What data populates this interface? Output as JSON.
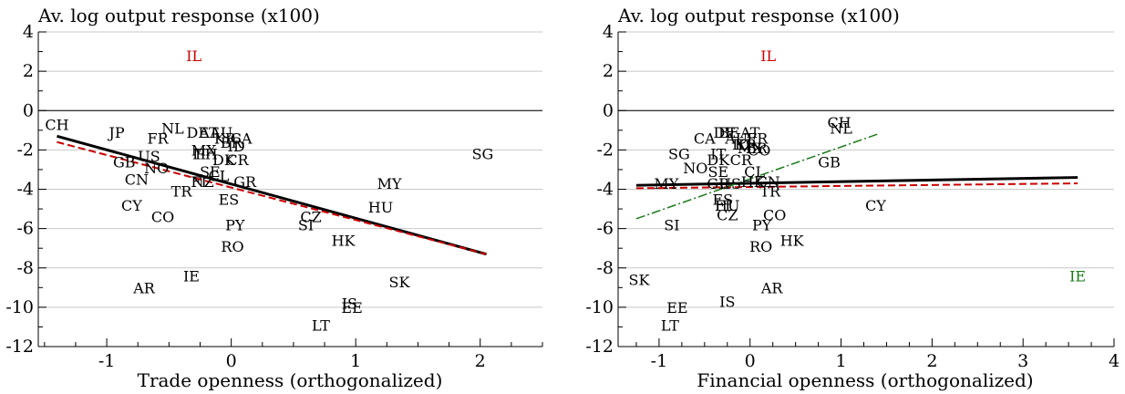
{
  "chart_data": [
    {
      "type": "scatter",
      "title": "Av. log output response (x100)",
      "xlabel": "Trade openness (orthogonalized)",
      "ylabel": "",
      "xlim": [
        -1.55,
        2.5
      ],
      "ylim": [
        -12,
        4
      ],
      "xticks": [
        -1,
        0,
        1,
        2
      ],
      "yticks": [
        -12,
        -10,
        -8,
        -6,
        -4,
        -2,
        0,
        2,
        4
      ],
      "grid": true,
      "points": [
        {
          "label": "CH",
          "x": -1.4,
          "y": -0.7,
          "color": "#000000"
        },
        {
          "label": "JP",
          "x": -0.92,
          "y": -1.1,
          "color": "#000000"
        },
        {
          "label": "NL",
          "x": -0.47,
          "y": -0.9,
          "color": "#000000"
        },
        {
          "label": "FR",
          "x": -0.59,
          "y": -1.4,
          "color": "#000000"
        },
        {
          "label": "DE",
          "x": -0.27,
          "y": -1.1,
          "color": "#000000"
        },
        {
          "label": "AT",
          "x": -0.18,
          "y": -1.1,
          "color": "#000000"
        },
        {
          "label": "AU",
          "x": -0.08,
          "y": -1.1,
          "color": "#000000"
        },
        {
          "label": "CA",
          "x": 0.08,
          "y": -1.4,
          "color": "#000000"
        },
        {
          "label": "KR",
          "x": -0.05,
          "y": -1.4,
          "color": "#000000"
        },
        {
          "label": "ID",
          "x": 0.04,
          "y": -1.8,
          "color": "#000000"
        },
        {
          "label": "BR",
          "x": 0.0,
          "y": -1.6,
          "color": "#000000"
        },
        {
          "label": "MX",
          "x": -0.22,
          "y": -2.0,
          "color": "#000000"
        },
        {
          "label": "PH",
          "x": -0.2,
          "y": -2.2,
          "color": "#000000"
        },
        {
          "label": "IT",
          "x": -0.25,
          "y": -2.2,
          "color": "#000000"
        },
        {
          "label": "CR",
          "x": 0.05,
          "y": -2.5,
          "color": "#000000"
        },
        {
          "label": "DK",
          "x": -0.06,
          "y": -2.5,
          "color": "#000000"
        },
        {
          "label": "US",
          "x": -0.66,
          "y": -2.3,
          "color": "#000000"
        },
        {
          "label": "GB",
          "x": -0.86,
          "y": -2.6,
          "color": "#000000"
        },
        {
          "label": "NO",
          "x": -0.6,
          "y": -2.9,
          "color": "#000000"
        },
        {
          "label": "SE",
          "x": -0.17,
          "y": -3.1,
          "color": "#000000"
        },
        {
          "label": "CL",
          "x": -0.1,
          "y": -3.3,
          "color": "#000000"
        },
        {
          "label": "CN",
          "x": -0.76,
          "y": -3.5,
          "color": "#000000"
        },
        {
          "label": "GR",
          "x": 0.11,
          "y": -3.6,
          "color": "#000000"
        },
        {
          "label": "NZ",
          "x": -0.23,
          "y": -3.6,
          "color": "#000000"
        },
        {
          "label": "FI",
          "x": -0.26,
          "y": -3.6,
          "color": "#000000"
        },
        {
          "label": "TR",
          "x": -0.4,
          "y": -4.1,
          "color": "#000000"
        },
        {
          "label": "CY",
          "x": -0.8,
          "y": -4.8,
          "color": "#000000"
        },
        {
          "label": "ES",
          "x": -0.02,
          "y": -4.5,
          "color": "#000000"
        },
        {
          "label": "CO",
          "x": -0.55,
          "y": -5.4,
          "color": "#000000"
        },
        {
          "label": "PY",
          "x": 0.03,
          "y": -5.8,
          "color": "#000000"
        },
        {
          "label": "CZ",
          "x": 0.64,
          "y": -5.4,
          "color": "#000000"
        },
        {
          "label": "SI",
          "x": 0.6,
          "y": -5.8,
          "color": "#000000"
        },
        {
          "label": "MY",
          "x": 1.27,
          "y": -3.7,
          "color": "#000000"
        },
        {
          "label": "HU",
          "x": 1.2,
          "y": -4.9,
          "color": "#000000"
        },
        {
          "label": "SG",
          "x": 2.02,
          "y": -2.2,
          "color": "#000000"
        },
        {
          "label": "HK",
          "x": 0.9,
          "y": -6.6,
          "color": "#000000"
        },
        {
          "label": "RO",
          "x": 0.01,
          "y": -6.9,
          "color": "#000000"
        },
        {
          "label": "IE",
          "x": -0.32,
          "y": -8.4,
          "color": "#000000"
        },
        {
          "label": "AR",
          "x": -0.7,
          "y": -9.0,
          "color": "#000000"
        },
        {
          "label": "SK",
          "x": 1.35,
          "y": -8.7,
          "color": "#000000"
        },
        {
          "label": "IS",
          "x": 0.95,
          "y": -9.8,
          "color": "#000000"
        },
        {
          "label": "EE",
          "x": 0.97,
          "y": -10.0,
          "color": "#000000"
        },
        {
          "label": "LT",
          "x": 0.72,
          "y": -10.9,
          "color": "#000000"
        },
        {
          "label": "IL",
          "x": -0.3,
          "y": 2.8,
          "color": "#cc0000"
        }
      ],
      "lines": [
        {
          "style": "solid",
          "color": "#000000",
          "x": [
            -1.4,
            2.05
          ],
          "y": [
            -1.3,
            -7.3
          ]
        },
        {
          "style": "dashed",
          "color": "#cc0000",
          "x": [
            -1.4,
            2.05
          ],
          "y": [
            -1.6,
            -7.3
          ]
        }
      ]
    },
    {
      "type": "scatter",
      "title": "Av. log output response (x100)",
      "xlabel": "Financial openness (orthogonalized)",
      "ylabel": "",
      "xlim": [
        -1.45,
        4
      ],
      "ylim": [
        -12,
        4
      ],
      "xticks": [
        -1,
        0,
        1,
        2,
        3,
        4
      ],
      "yticks": [
        -12,
        -10,
        -8,
        -6,
        -4,
        -2,
        0,
        2,
        4
      ],
      "grid": true,
      "points": [
        {
          "label": "CH",
          "x": 0.98,
          "y": -0.6,
          "color": "#000000"
        },
        {
          "label": "NL",
          "x": 1.0,
          "y": -0.9,
          "color": "#000000"
        },
        {
          "label": "DE",
          "x": -0.28,
          "y": -1.1,
          "color": "#000000"
        },
        {
          "label": "BE",
          "x": -0.23,
          "y": -1.1,
          "color": "#000000"
        },
        {
          "label": "AT",
          "x": 0.0,
          "y": -1.1,
          "color": "#000000"
        },
        {
          "label": "CA",
          "x": -0.5,
          "y": -1.4,
          "color": "#000000"
        },
        {
          "label": "AU",
          "x": -0.15,
          "y": -1.4,
          "color": "#000000"
        },
        {
          "label": "FR",
          "x": 0.08,
          "y": -1.4,
          "color": "#000000"
        },
        {
          "label": "ID",
          "x": -0.1,
          "y": -1.7,
          "color": "#000000"
        },
        {
          "label": "KR",
          "x": -0.05,
          "y": -1.7,
          "color": "#000000"
        },
        {
          "label": "MX",
          "x": 0.0,
          "y": -1.9,
          "color": "#000000"
        },
        {
          "label": "BR",
          "x": 0.07,
          "y": -1.9,
          "color": "#000000"
        },
        {
          "label": "CO",
          "x": 0.1,
          "y": -2.0,
          "color": "#000000"
        },
        {
          "label": "SG",
          "x": -0.78,
          "y": -2.2,
          "color": "#000000"
        },
        {
          "label": "IT",
          "x": -0.35,
          "y": -2.2,
          "color": "#000000"
        },
        {
          "label": "DK",
          "x": -0.35,
          "y": -2.5,
          "color": "#000000"
        },
        {
          "label": "CR",
          "x": -0.1,
          "y": -2.5,
          "color": "#000000"
        },
        {
          "label": "GB",
          "x": 0.87,
          "y": -2.6,
          "color": "#000000"
        },
        {
          "label": "NO",
          "x": -0.6,
          "y": -2.9,
          "color": "#000000"
        },
        {
          "label": "SE",
          "x": -0.35,
          "y": -3.1,
          "color": "#000000"
        },
        {
          "label": "CL",
          "x": 0.05,
          "y": -3.1,
          "color": "#000000"
        },
        {
          "label": "MY",
          "x": -0.92,
          "y": -3.7,
          "color": "#000000"
        },
        {
          "label": "GR",
          "x": -0.35,
          "y": -3.7,
          "color": "#000000"
        },
        {
          "label": "US",
          "x": -0.22,
          "y": -3.7,
          "color": "#000000"
        },
        {
          "label": "HK",
          "x": 0.03,
          "y": -3.6,
          "color": "#000000"
        },
        {
          "label": "CN",
          "x": 0.2,
          "y": -3.6,
          "color": "#000000"
        },
        {
          "label": "TR",
          "x": 0.22,
          "y": -4.1,
          "color": "#000000"
        },
        {
          "label": "ES",
          "x": -0.3,
          "y": -4.5,
          "color": "#000000"
        },
        {
          "label": "FI",
          "x": -0.3,
          "y": -4.8,
          "color": "#000000"
        },
        {
          "label": "HU",
          "x": -0.25,
          "y": -4.8,
          "color": "#000000"
        },
        {
          "label": "CZ",
          "x": -0.25,
          "y": -5.3,
          "color": "#000000"
        },
        {
          "label": "CY",
          "x": 1.38,
          "y": -4.8,
          "color": "#000000"
        },
        {
          "label": "CO",
          "x": 0.27,
          "y": -5.3,
          "color": "#000000"
        },
        {
          "label": "PY",
          "x": 0.13,
          "y": -5.8,
          "color": "#000000"
        },
        {
          "label": "SI",
          "x": -0.86,
          "y": -5.8,
          "color": "#000000"
        },
        {
          "label": "RO",
          "x": 0.12,
          "y": -6.9,
          "color": "#000000"
        },
        {
          "label": "HK",
          "x": 0.46,
          "y": -6.6,
          "color": "#000000"
        },
        {
          "label": "SK",
          "x": -1.22,
          "y": -8.6,
          "color": "#000000"
        },
        {
          "label": "AR",
          "x": 0.24,
          "y": -9.0,
          "color": "#000000"
        },
        {
          "label": "IS",
          "x": -0.25,
          "y": -9.7,
          "color": "#000000"
        },
        {
          "label": "EE",
          "x": -0.8,
          "y": -10.0,
          "color": "#000000"
        },
        {
          "label": "LT",
          "x": -0.88,
          "y": -10.9,
          "color": "#000000"
        },
        {
          "label": "IL",
          "x": 0.2,
          "y": 2.8,
          "color": "#cc0000"
        },
        {
          "label": "IE",
          "x": 3.6,
          "y": -8.4,
          "color": "#1a7a1a"
        }
      ],
      "lines": [
        {
          "style": "solid",
          "color": "#000000",
          "x": [
            -1.25,
            3.6
          ],
          "y": [
            -3.8,
            -3.4
          ]
        },
        {
          "style": "dashed",
          "color": "#cc0000",
          "x": [
            -1.25,
            3.6
          ],
          "y": [
            -3.95,
            -3.7
          ]
        },
        {
          "style": "dashdot",
          "color": "#1a7a1a",
          "x": [
            -1.25,
            1.4
          ],
          "y": [
            -5.5,
            -1.2
          ]
        }
      ]
    }
  ]
}
